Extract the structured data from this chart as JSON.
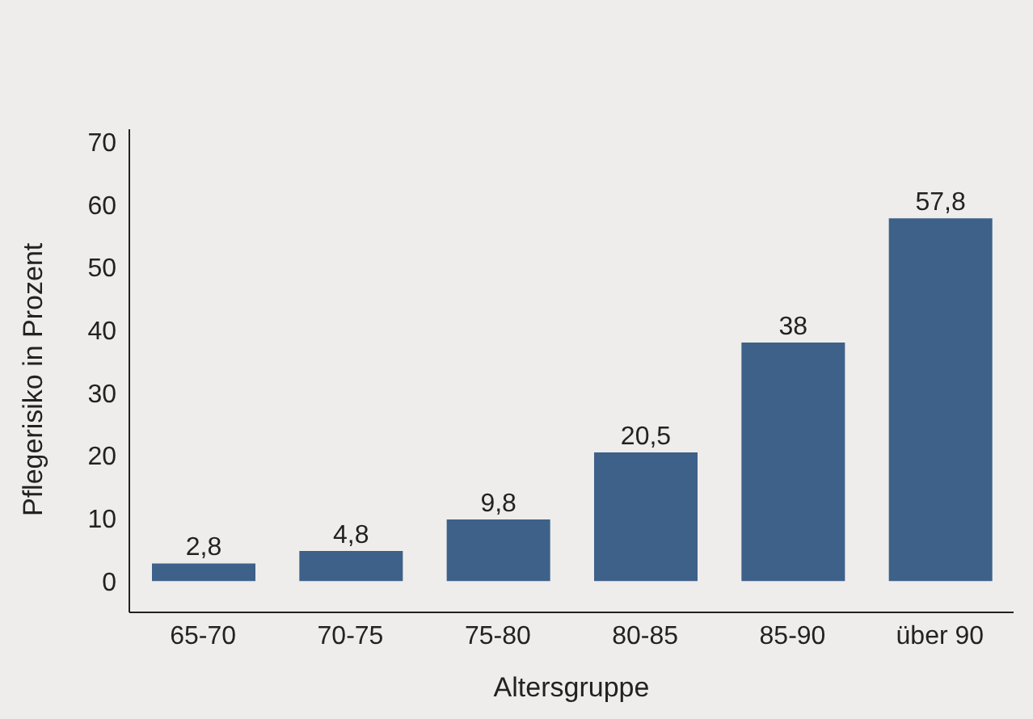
{
  "chart_data": {
    "type": "bar",
    "xlabel": "Altersgruppe",
    "ylabel": "Pflegerisiko in Prozent",
    "categories": [
      "65-70",
      "70-75",
      "75-80",
      "80-85",
      "85-90",
      "über 90"
    ],
    "values": [
      2.8,
      4.8,
      9.8,
      20.5,
      38,
      57.8
    ],
    "color": "#3d6189",
    "ylim": [
      -5,
      72
    ],
    "yticks": [
      0,
      10,
      20,
      30,
      40,
      50,
      60,
      70
    ],
    "grid": false,
    "value_labels": [
      "2,8",
      "4,8",
      "9,8",
      "20,5",
      "38",
      "57,8"
    ]
  }
}
